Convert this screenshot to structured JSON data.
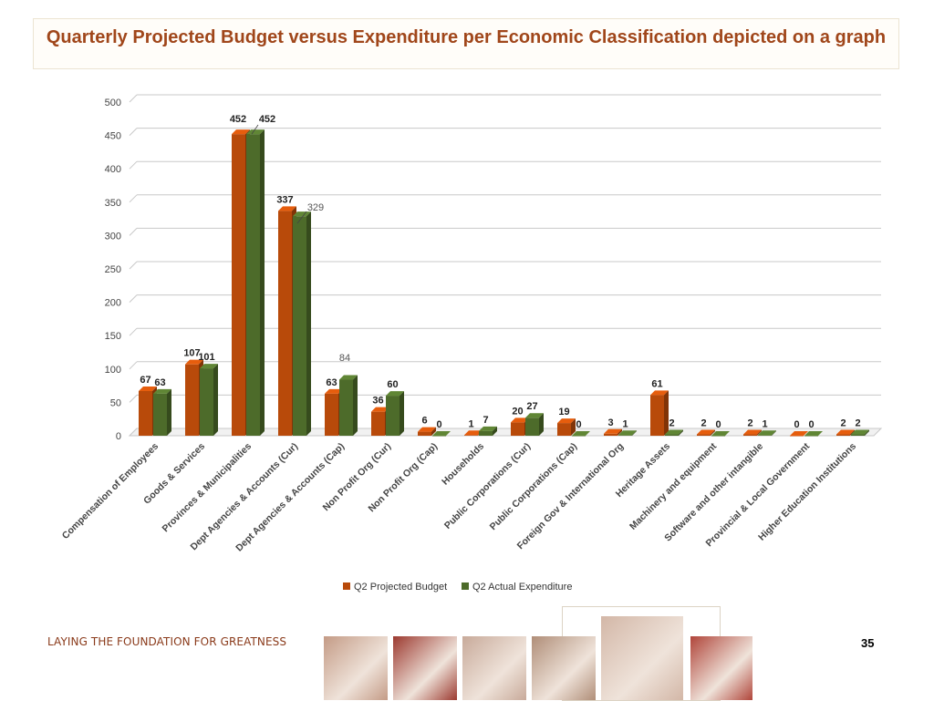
{
  "slide": {
    "title": "Quarterly Projected Budget versus Expenditure per Economic Classification depicted on a graph",
    "footer_tagline": "LAYING THE FOUNDATION FOR GREATNESS",
    "page_number": "35"
  },
  "colors": {
    "title": "#a0461a",
    "projected_bar": "#b84a0a",
    "actual_bar": "#4d6b2a",
    "gridline": "#c8c8c8"
  },
  "footer_images": [
    {
      "name": "manuscript-photo",
      "color": "#c49b86"
    },
    {
      "name": "people-silhouette-photo",
      "color": "#9c3a30"
    },
    {
      "name": "film-strip-photo",
      "color": "#c8aa9a"
    },
    {
      "name": "beadwork-photo",
      "color": "#b08e78"
    },
    {
      "name": "ballet-shoes-photo",
      "color": "#d3b7a7"
    },
    {
      "name": "saxophone-player-photo",
      "color": "#b0453a"
    }
  ],
  "chart_data": {
    "type": "bar",
    "title": "",
    "xlabel": "",
    "ylabel": "",
    "ylim": [
      0,
      500
    ],
    "yticks": [
      0,
      50,
      100,
      150,
      200,
      250,
      300,
      350,
      400,
      450,
      500
    ],
    "grid": true,
    "legend_position": "bottom-center",
    "categories": [
      "Compensation  of Employees",
      "Goods & Services",
      "Provinces & Municipalities",
      "Dept Agencies & Accounts (Cur)",
      "Dept Agencies & Accounts (Cap)",
      "Non Profit Org (Cur)",
      "Non Profit Org (Cap)",
      "Households",
      "Public Corporations (Cur)",
      "Public Corporations (Cap)",
      "Foreign Gov & International Org",
      "Heritage Assets",
      "Machinery and equipment",
      "Software and other intangible",
      "Provincial & Local Government",
      "Higher Education Institutions"
    ],
    "series": [
      {
        "name": "Q2 Projected Budget",
        "color": "#b84a0a",
        "values": [
          67,
          107,
          452,
          337,
          63,
          36,
          6,
          1,
          20,
          19,
          3,
          61,
          2,
          2,
          0,
          2
        ]
      },
      {
        "name": "Q2 Actual Expenditure",
        "color": "#4d6b2a",
        "values": [
          63,
          101,
          452,
          329,
          84,
          60,
          0,
          7,
          27,
          0,
          1,
          2,
          0,
          1,
          0,
          2
        ]
      }
    ]
  }
}
